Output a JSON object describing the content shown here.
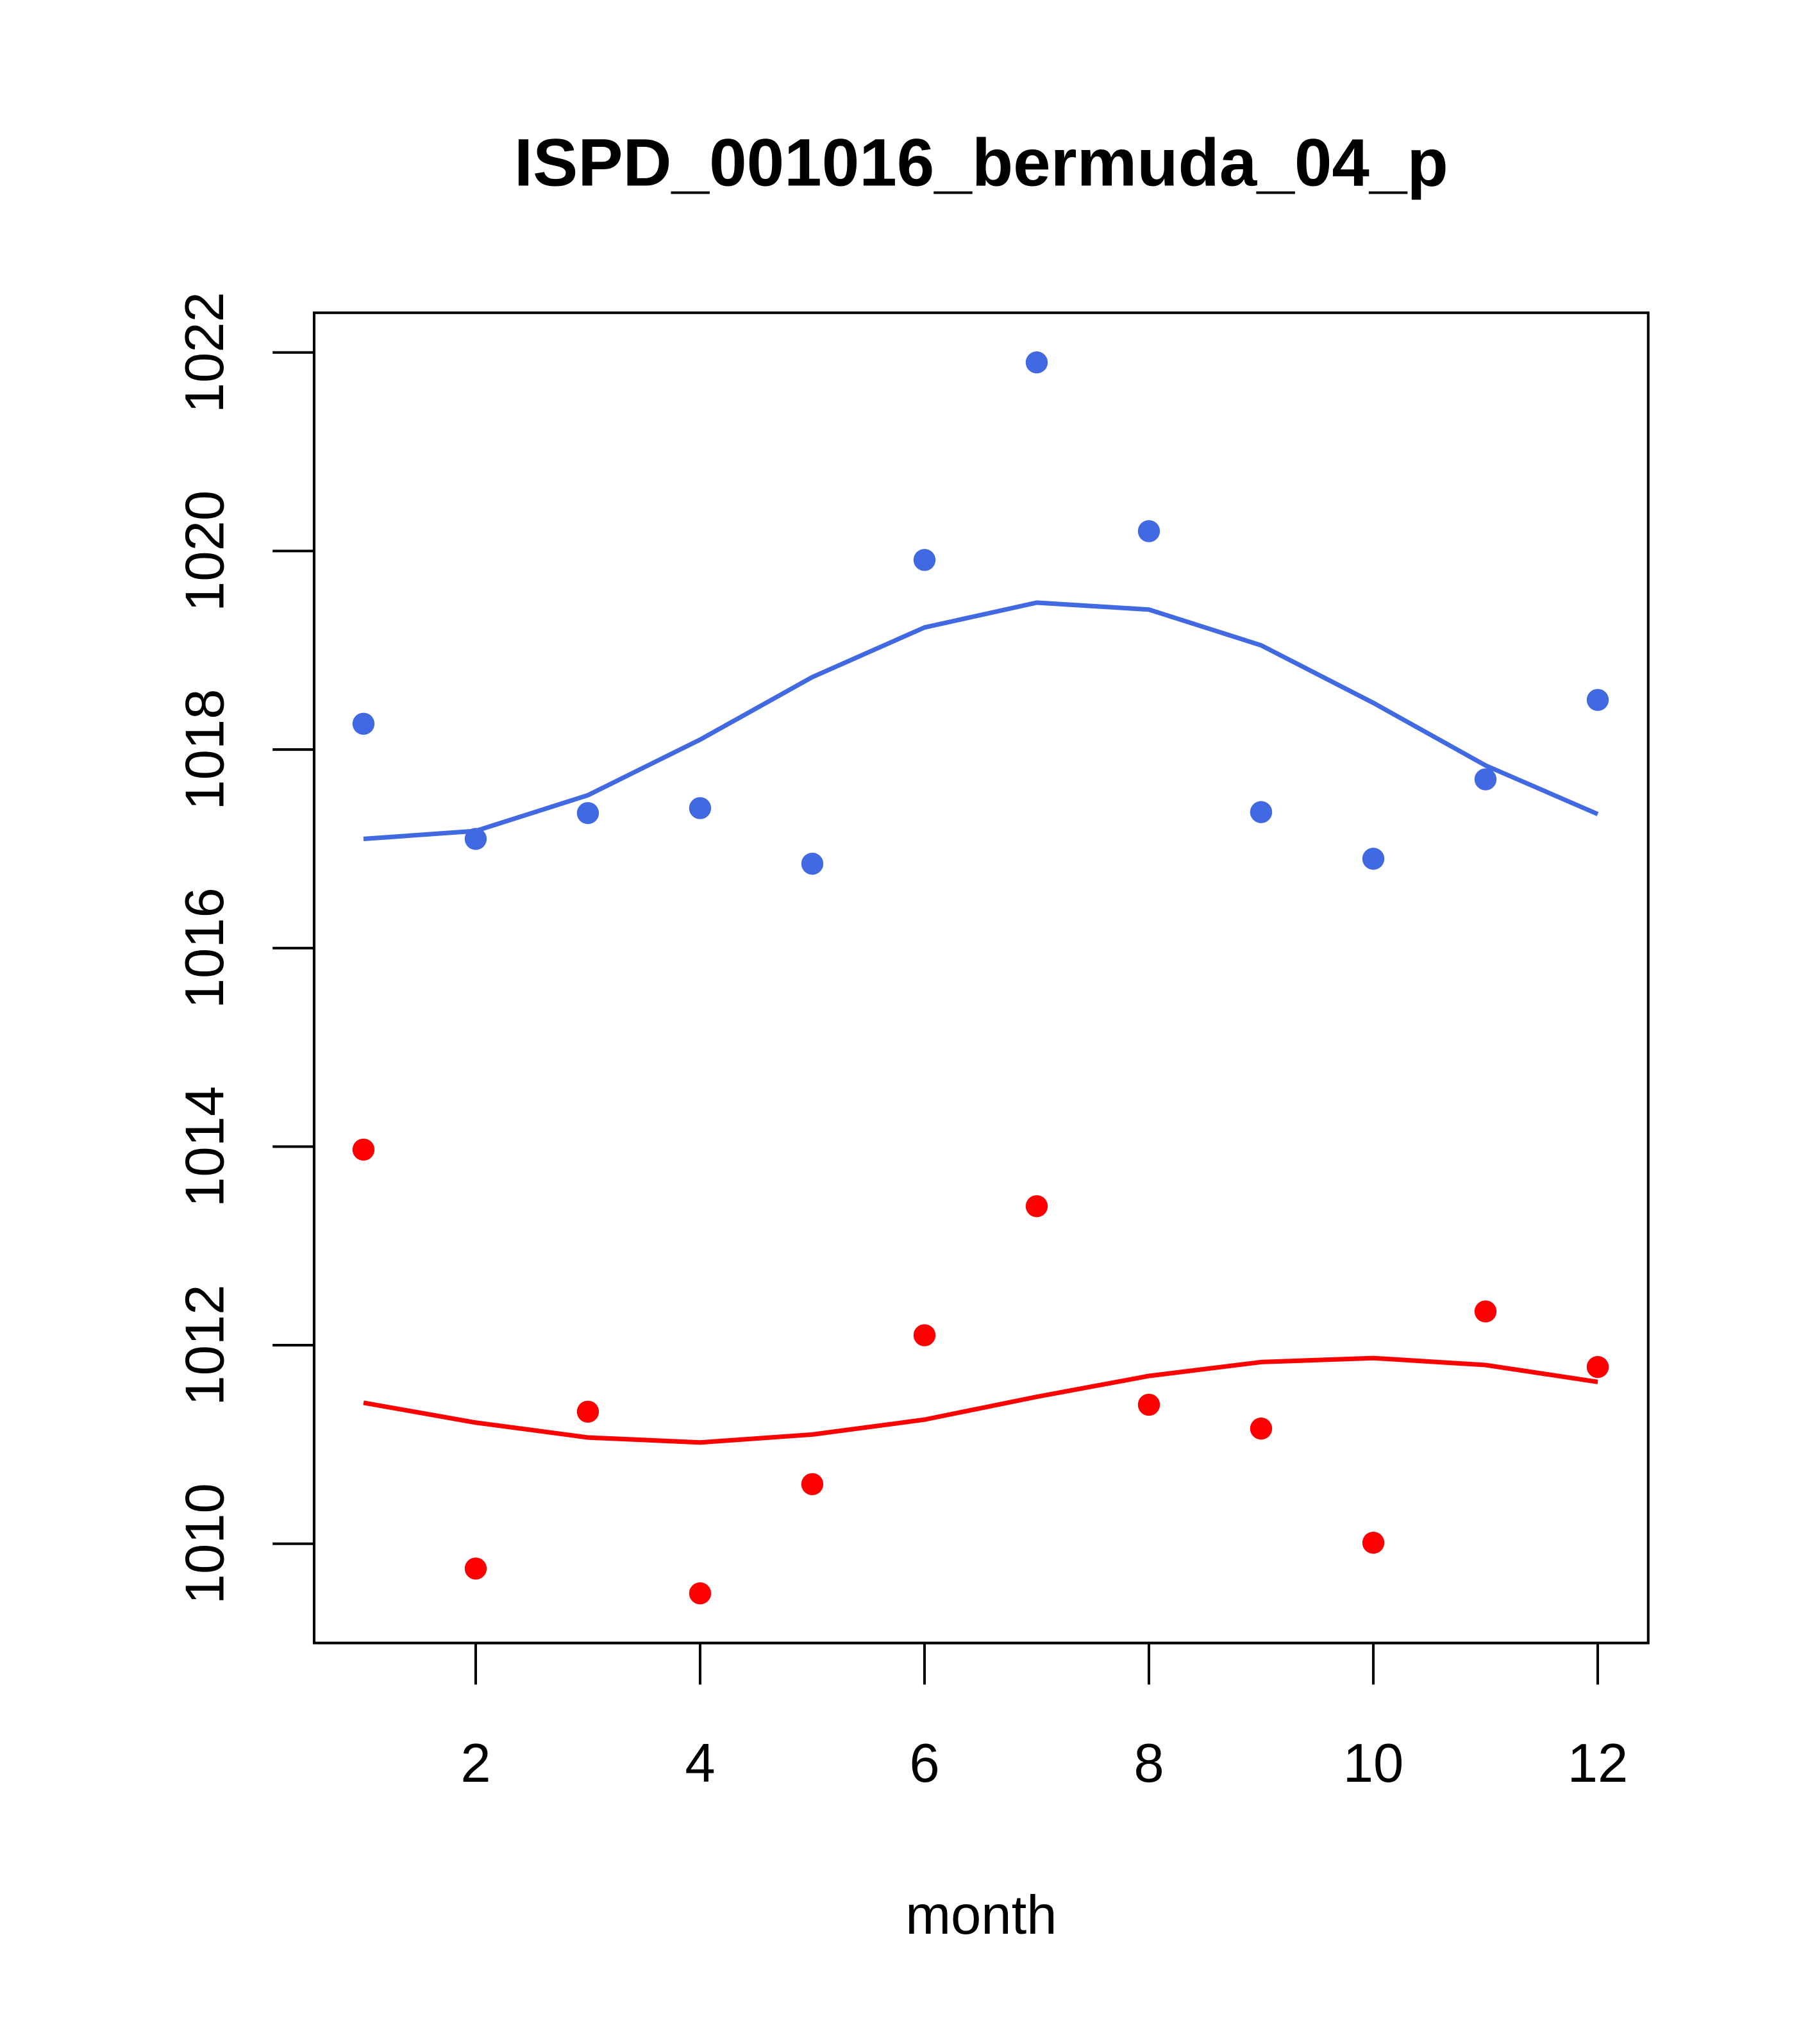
{
  "chart_data": {
    "type": "scatter",
    "title": "ISPD_001016_bermuda_04_p",
    "xlabel": "month",
    "ylabel": "",
    "xlim": [
      0.56,
      12.45
    ],
    "ylim": [
      1009.0,
      1022.4
    ],
    "xticks": [
      2,
      4,
      6,
      8,
      10,
      12
    ],
    "xtick_labels": [
      "2",
      "4",
      "6",
      "8",
      "10",
      "12"
    ],
    "yticks": [
      1010,
      1012,
      1014,
      1016,
      1018,
      1020,
      1022
    ],
    "ytick_labels": [
      "1010",
      "1012",
      "1014",
      "1016",
      "1018",
      "1020",
      "1022"
    ],
    "grid": false,
    "x": [
      1,
      2,
      3,
      4,
      5,
      6,
      7,
      8,
      9,
      10,
      11,
      12
    ],
    "series": [
      {
        "name": "blue points",
        "kind": "points",
        "color": "#4169E1",
        "values": [
          1018.26,
          1017.1,
          1017.36,
          1017.41,
          1016.85,
          1019.91,
          1021.9,
          1020.2,
          1017.37,
          1016.9,
          1017.7,
          1018.5
        ]
      },
      {
        "name": "blue smooth",
        "kind": "line",
        "color": "#4169E1",
        "values": [
          1017.1,
          1017.18,
          1017.54,
          1018.1,
          1018.73,
          1019.23,
          1019.48,
          1019.41,
          1019.05,
          1018.47,
          1017.84,
          1017.35
        ]
      },
      {
        "name": "red points",
        "kind": "points",
        "color": "#FF0000",
        "values": [
          1013.97,
          1009.75,
          1011.33,
          1009.5,
          1010.6,
          1012.1,
          1013.4,
          1011.4,
          1011.16,
          1010.01,
          1012.34,
          1011.78
        ]
      },
      {
        "name": "red smooth",
        "kind": "line",
        "color": "#FF0000",
        "values": [
          1011.42,
          1011.22,
          1011.07,
          1011.02,
          1011.1,
          1011.25,
          1011.48,
          1011.69,
          1011.83,
          1011.87,
          1011.8,
          1011.63
        ]
      }
    ]
  }
}
